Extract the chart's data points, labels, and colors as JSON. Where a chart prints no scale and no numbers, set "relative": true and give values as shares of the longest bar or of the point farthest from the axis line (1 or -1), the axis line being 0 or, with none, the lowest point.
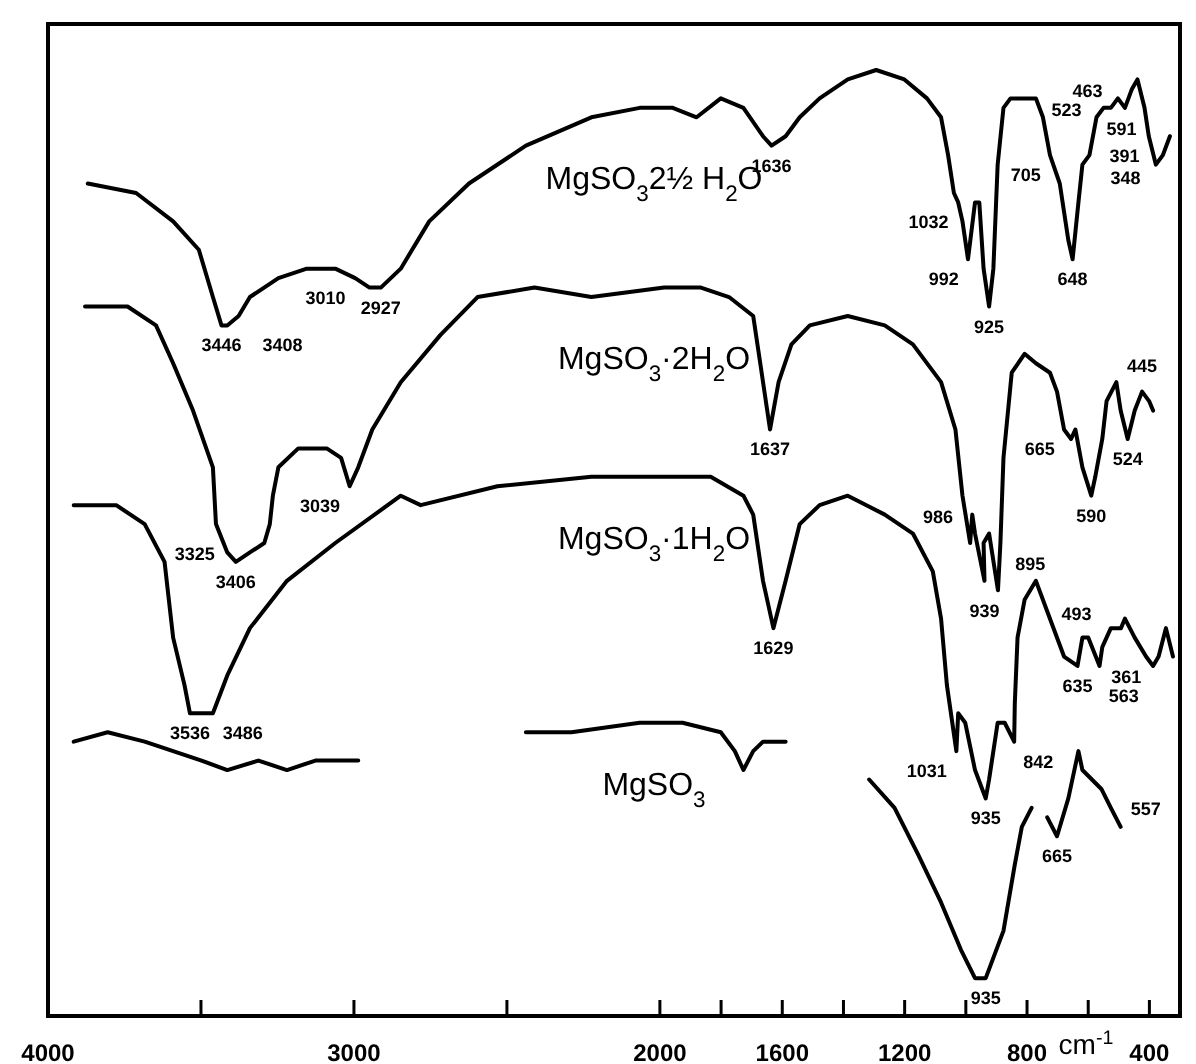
{
  "chart_data": {
    "type": "line",
    "relative": true,
    "xlabel": "cm$^{-1}$",
    "xlim": [
      4000,
      300
    ],
    "xticks": [
      4000,
      {
        "value": 3500,
        "label": null
      },
      3000,
      {
        "value": 2500,
        "label": null
      },
      2000,
      {
        "value": 1800,
        "label": null
      },
      1600,
      {
        "value": 1400,
        "label": null
      },
      1200,
      {
        "value": 1000,
        "label": null
      },
      800,
      {
        "value": 600,
        "label": null
      },
      400
    ],
    "grid": false,
    "marker": "none",
    "line_style": "solid",
    "series": [
      {
        "name": "MgSO$_{3}$2½ H$_{2}$O",
        "color": "#000000",
        "x": [
          3870,
          3712,
          3591,
          3507,
          3461,
          3433,
          3414,
          3377,
          3340,
          3247,
          3154,
          3061,
          2996,
          2949,
          2912,
          2847,
          2754,
          2624,
          2438,
          2224,
          2066,
          1958,
          1880,
          1801,
          1727,
          1663,
          1635,
          1589,
          1543,
          1478,
          1386,
          1293,
          1201,
          1127,
          1081,
          1058,
          1039,
          1025,
          1011,
          993,
          970,
          956,
          942,
          924,
          910,
          896,
          877,
          854,
          771,
          748,
          725,
          693,
          665,
          651,
          632,
          619,
          596,
          573,
          550,
          526,
          503,
          480,
          457,
          439,
          416,
          402,
          379,
          356,
          333
        ],
        "values": [
          0.88,
          0.87,
          0.84,
          0.81,
          0.76,
          0.73,
          0.73,
          0.74,
          0.76,
          0.78,
          0.79,
          0.79,
          0.78,
          0.77,
          0.77,
          0.79,
          0.84,
          0.88,
          0.92,
          0.95,
          0.96,
          0.96,
          0.95,
          0.97,
          0.96,
          0.93,
          0.92,
          0.93,
          0.95,
          0.97,
          0.99,
          1,
          0.99,
          0.97,
          0.95,
          0.91,
          0.87,
          0.86,
          0.84,
          0.8,
          0.86,
          0.86,
          0.79,
          0.75,
          0.79,
          0.9,
          0.96,
          0.97,
          0.97,
          0.95,
          0.91,
          0.88,
          0.82,
          0.8,
          0.86,
          0.9,
          0.91,
          0.95,
          0.96,
          0.96,
          0.97,
          0.96,
          0.98,
          0.99,
          0.96,
          0.93,
          0.9,
          0.91,
          0.93
        ]
      },
      {
        "name": "MgSO$_{3}$·2H$_{2}$O",
        "color": "#000000",
        "x": [
          3879,
          3740,
          3647,
          3591,
          3526,
          3461,
          3451,
          3414,
          3386,
          3340,
          3293,
          3275,
          3265,
          3247,
          3182,
          3089,
          3042,
          3014,
          2986,
          2940,
          2847,
          2717,
          2596,
          2410,
          2224,
          1986,
          1866,
          1774,
          1695,
          1672,
          1640,
          1612,
          1570,
          1510,
          1386,
          1265,
          1173,
          1081,
          1034,
          1011,
          986,
          979,
          970,
          939,
          942,
          924,
          895,
          887,
          877,
          850,
          808,
          771,
          725,
          702,
          679,
          656,
          642,
          619,
          590,
          577,
          554,
          540,
          508,
          494,
          471,
          448,
          424,
          401,
          388
        ],
        "values": [
          0.75,
          0.75,
          0.73,
          0.69,
          0.64,
          0.58,
          0.52,
          0.49,
          0.48,
          0.49,
          0.5,
          0.52,
          0.55,
          0.58,
          0.6,
          0.6,
          0.59,
          0.56,
          0.58,
          0.62,
          0.67,
          0.72,
          0.76,
          0.77,
          0.76,
          0.77,
          0.77,
          0.76,
          0.74,
          0.69,
          0.62,
          0.67,
          0.71,
          0.73,
          0.74,
          0.73,
          0.71,
          0.67,
          0.62,
          0.55,
          0.5,
          0.53,
          0.51,
          0.46,
          0.5,
          0.51,
          0.45,
          0.5,
          0.59,
          0.68,
          0.7,
          0.69,
          0.68,
          0.66,
          0.62,
          0.61,
          0.62,
          0.58,
          0.55,
          0.57,
          0.61,
          0.65,
          0.67,
          0.64,
          0.61,
          0.64,
          0.66,
          0.65,
          0.64
        ]
      },
      {
        "name": "MgSO$_{3}$·1H$_{2}$O",
        "color": "#000000",
        "x": [
          3916,
          3777,
          3684,
          3619,
          3591,
          3554,
          3536,
          3486,
          3461,
          3414,
          3340,
          3219,
          3061,
          2847,
          2782,
          2531,
          2224,
          1958,
          1834,
          1727,
          1695,
          1663,
          1629,
          1589,
          1543,
          1478,
          1386,
          1265,
          1173,
          1108,
          1081,
          1062,
          1031,
          1025,
          1002,
          970,
          935,
          924,
          896,
          873,
          842,
          840,
          831,
          808,
          771,
          725,
          679,
          635,
          619,
          600,
          563,
          554,
          526,
          493,
          480,
          448,
          411,
          388,
          370,
          346,
          323
        ],
        "values": [
          0.54,
          0.54,
          0.52,
          0.48,
          0.4,
          0.35,
          0.32,
          0.32,
          0.32,
          0.36,
          0.41,
          0.46,
          0.5,
          0.55,
          0.54,
          0.56,
          0.57,
          0.57,
          0.57,
          0.55,
          0.53,
          0.46,
          0.41,
          0.46,
          0.52,
          0.54,
          0.55,
          0.53,
          0.51,
          0.47,
          0.42,
          0.35,
          0.28,
          0.32,
          0.31,
          0.26,
          0.23,
          0.25,
          0.31,
          0.31,
          0.29,
          0.33,
          0.4,
          0.44,
          0.46,
          0.42,
          0.38,
          0.37,
          0.4,
          0.4,
          0.37,
          0.39,
          0.41,
          0.41,
          0.42,
          0.4,
          0.38,
          0.37,
          0.38,
          0.41,
          0.38
        ]
      },
      {
        "name": "MgSO$_{3}$",
        "color": "#000000",
        "x": [
          3916,
          3805,
          3684,
          3591,
          3498,
          3414,
          3312,
          3219,
          3126,
          2986,
          2700,
          2438,
          2289,
          2066,
          1926,
          1801,
          1755,
          1727,
          1695,
          1663,
          1635,
          1589,
          1450,
          1316,
          1233,
          1155,
          1081,
          1016,
          970,
          935,
          877,
          840,
          817,
          785,
          760,
          734,
          702,
          665,
          632,
          619,
          557,
          526,
          494
        ],
        "values": [
          0.29,
          0.3,
          0.29,
          0.28,
          0.27,
          0.26,
          0.27,
          0.26,
          0.27,
          0.27,
          null,
          0.3,
          0.3,
          0.31,
          0.31,
          0.3,
          0.28,
          0.26,
          0.28,
          0.29,
          0.29,
          0.29,
          null,
          0.25,
          0.22,
          0.17,
          0.12,
          0.07,
          0.04,
          0.04,
          0.09,
          0.16,
          0.2,
          0.22,
          null,
          0.21,
          0.19,
          0.23,
          0.28,
          0.26,
          0.24,
          0.22,
          0.2
        ]
      }
    ],
    "annotations": [
      {
        "text": "3446",
        "x": 3433,
        "y": 0.73
      },
      {
        "text": "3408",
        "x": 3414,
        "y": 0.73
      },
      {
        "text": "3010",
        "x": 2996,
        "y": 0.78
      },
      {
        "text": "2927",
        "x": 2912,
        "y": 0.77
      },
      {
        "text": "1636",
        "x": 1635,
        "y": 0.92
      },
      {
        "text": "1032",
        "x": 1025,
        "y": 0.86
      },
      {
        "text": "992",
        "x": 993,
        "y": 0.8
      },
      {
        "text": "925",
        "x": 924,
        "y": 0.75
      },
      {
        "text": "705",
        "x": 725,
        "y": 0.91
      },
      {
        "text": "648",
        "x": 651,
        "y": 0.8
      },
      {
        "text": "591",
        "x": 596,
        "y": 0.91
      },
      {
        "text": "523",
        "x": 526,
        "y": 0.96
      },
      {
        "text": "463",
        "x": 457,
        "y": 0.98
      },
      {
        "text": "391",
        "x": 402,
        "y": 0.93
      },
      {
        "text": "348",
        "x": 333,
        "y": 0.93
      },
      {
        "text": "3406",
        "x": 3386,
        "y": 0.48
      },
      {
        "text": "3325",
        "x": 3340,
        "y": 0.49
      },
      {
        "text": "3039",
        "x": 3014,
        "y": 0.56
      },
      {
        "text": "1637",
        "x": 1640,
        "y": 0.62
      },
      {
        "text": "986",
        "x": 986,
        "y": 0.5
      },
      {
        "text": "939",
        "x": 939,
        "y": 0.46
      },
      {
        "text": "895",
        "x": 895,
        "y": 0.45
      },
      {
        "text": "665",
        "x": 679,
        "y": 0.62
      },
      {
        "text": "590",
        "x": 590,
        "y": 0.55
      },
      {
        "text": "524",
        "x": 471,
        "y": 0.61
      },
      {
        "text": "445",
        "x": 424,
        "y": 0.66
      },
      {
        "text": "3536",
        "x": 3536,
        "y": 0.32
      },
      {
        "text": "3486",
        "x": 3486,
        "y": 0.32
      },
      {
        "text": "1629",
        "x": 1629,
        "y": 0.41
      },
      {
        "text": "1031",
        "x": 1031,
        "y": 0.28
      },
      {
        "text": "935",
        "x": 935,
        "y": 0.23
      },
      {
        "text": "842",
        "x": 842,
        "y": 0.29
      },
      {
        "text": "635",
        "x": 635,
        "y": 0.37
      },
      {
        "text": "563",
        "x": 563,
        "y": 0.37
      },
      {
        "text": "493",
        "x": 493,
        "y": 0.41
      },
      {
        "text": "361",
        "x": 370,
        "y": 0.38
      },
      {
        "text": "935",
        "x": 935,
        "y": 0.04
      },
      {
        "text": "665",
        "x": 702,
        "y": 0.19
      },
      {
        "text": "557",
        "x": 557,
        "y": 0.24
      }
    ]
  }
}
